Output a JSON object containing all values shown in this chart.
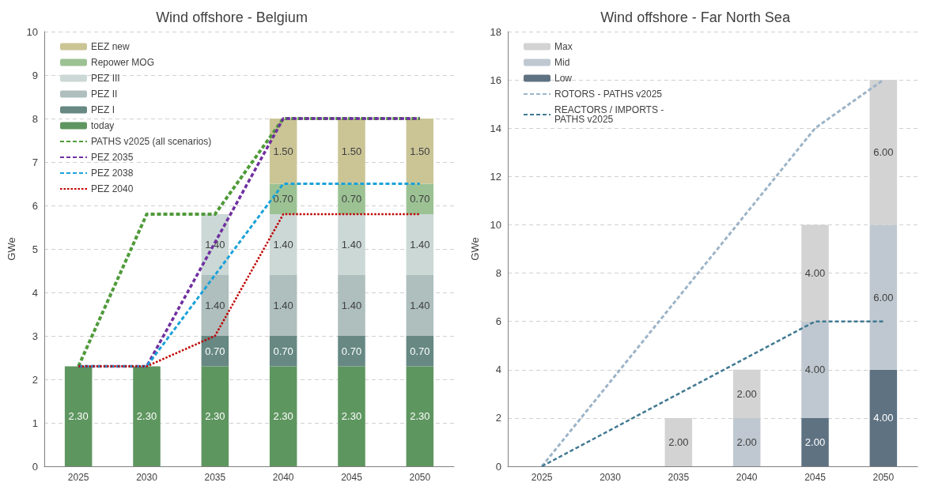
{
  "chart_data": [
    {
      "type": "bar",
      "title": "Wind offshore - Belgium",
      "ylabel": "GWe",
      "stacked": true,
      "categories": [
        "2025",
        "2030",
        "2035",
        "2040",
        "2045",
        "2050"
      ],
      "ylim": [
        0,
        10
      ],
      "yticks": [
        0,
        1,
        2,
        3,
        4,
        5,
        6,
        7,
        8,
        9,
        10
      ],
      "grid": "y",
      "legend": "top left",
      "marker": "none",
      "series": [
        {
          "name": "today",
          "color": "#5e9660",
          "values": [
            2.3,
            2.3,
            2.3,
            2.3,
            2.3,
            2.3
          ],
          "value_labels": [
            "2.30",
            "2.30",
            "2.30",
            "2.30",
            "2.30",
            "2.30"
          ]
        },
        {
          "name": "PEZ I",
          "color": "#678883",
          "values": [
            null,
            null,
            0.7,
            0.7,
            0.7,
            0.7
          ],
          "value_labels": [
            null,
            null,
            "0.70",
            "0.70",
            "0.70",
            "0.70"
          ]
        },
        {
          "name": "PEZ II",
          "color": "#aebfbd",
          "values": [
            null,
            null,
            1.4,
            1.4,
            1.4,
            1.4
          ],
          "value_labels": [
            null,
            null,
            "1.40",
            "1.40",
            "1.40",
            "1.40"
          ]
        },
        {
          "name": "PEZ III",
          "color": "#cbd8d6",
          "values": [
            null,
            null,
            1.4,
            1.4,
            1.4,
            1.4
          ],
          "value_labels": [
            null,
            null,
            "1.40",
            "1.40",
            "1.40",
            "1.40"
          ]
        },
        {
          "name": "Repower MOG",
          "color": "#9cc294",
          "values": [
            null,
            null,
            null,
            0.7,
            0.7,
            0.7
          ],
          "value_labels": [
            null,
            null,
            null,
            "0.70",
            "0.70",
            "0.70"
          ]
        },
        {
          "name": "EEZ new",
          "color": "#cbc596",
          "values": [
            null,
            null,
            null,
            1.5,
            1.5,
            1.5
          ],
          "value_labels": [
            null,
            null,
            null,
            "1.50",
            "1.50",
            "1.50"
          ]
        },
        {
          "name": "PATHS v2025 (all scenarios)",
          "type": "line",
          "line_style": "dashed",
          "color": "#4f9a3a",
          "values": [
            2.3,
            5.8,
            5.8,
            8,
            8,
            8
          ]
        },
        {
          "name": "PEZ 2035",
          "type": "line",
          "line_style": "dashed",
          "color": "#7030a0",
          "values": [
            2.3,
            2.3,
            5.15,
            8,
            8,
            8
          ]
        },
        {
          "name": "PEZ 2038",
          "type": "line",
          "line_style": "dashed",
          "color": "#1ba1d8",
          "values": [
            2.3,
            2.3,
            4.4,
            6.5,
            6.5,
            6.5
          ]
        },
        {
          "name": "PEZ 2040",
          "type": "line",
          "line_style": "dotted",
          "color": "#c00000",
          "values": [
            2.3,
            2.3,
            3,
            5.8,
            5.8,
            5.8
          ]
        }
      ]
    },
    {
      "type": "bar",
      "title": "Wind offshore - Far North Sea",
      "ylabel": "GWe",
      "stacked": true,
      "categories": [
        "2025",
        "2030",
        "2035",
        "2040",
        "2045",
        "2050"
      ],
      "ylim": [
        0,
        18
      ],
      "yticks": [
        0,
        2,
        4,
        6,
        8,
        10,
        12,
        14,
        16,
        18
      ],
      "grid": "y",
      "legend": "top left",
      "marker": "none",
      "series": [
        {
          "name": "Low",
          "color": "#5e7282",
          "values": [
            null,
            null,
            null,
            null,
            2,
            4
          ],
          "value_labels": [
            null,
            null,
            null,
            null,
            "2.00",
            "4.00"
          ]
        },
        {
          "name": "Mid",
          "color": "#bfc8d0",
          "values": [
            null,
            null,
            null,
            2,
            4,
            6
          ],
          "value_labels": [
            null,
            null,
            null,
            "2.00",
            "4.00",
            "6.00"
          ]
        },
        {
          "name": "Max",
          "color": "#d3d3d3",
          "values": [
            null,
            null,
            2,
            2,
            4,
            6
          ],
          "value_labels": [
            null,
            null,
            "2.00",
            "2.00",
            "4.00",
            "6.00"
          ]
        },
        {
          "name": "ROTORS - PATHS v2025",
          "type": "line",
          "line_style": "dashed",
          "color": "#9db4c8",
          "values": [
            0,
            3.5,
            7,
            10.5,
            14,
            16
          ]
        },
        {
          "name": "REACTORS / IMPORTS -\nPATHS v2025",
          "type": "line",
          "line_style": "dashed",
          "color": "#3f7891",
          "values": [
            0,
            1.5,
            3,
            4.5,
            6,
            6
          ]
        }
      ]
    }
  ]
}
